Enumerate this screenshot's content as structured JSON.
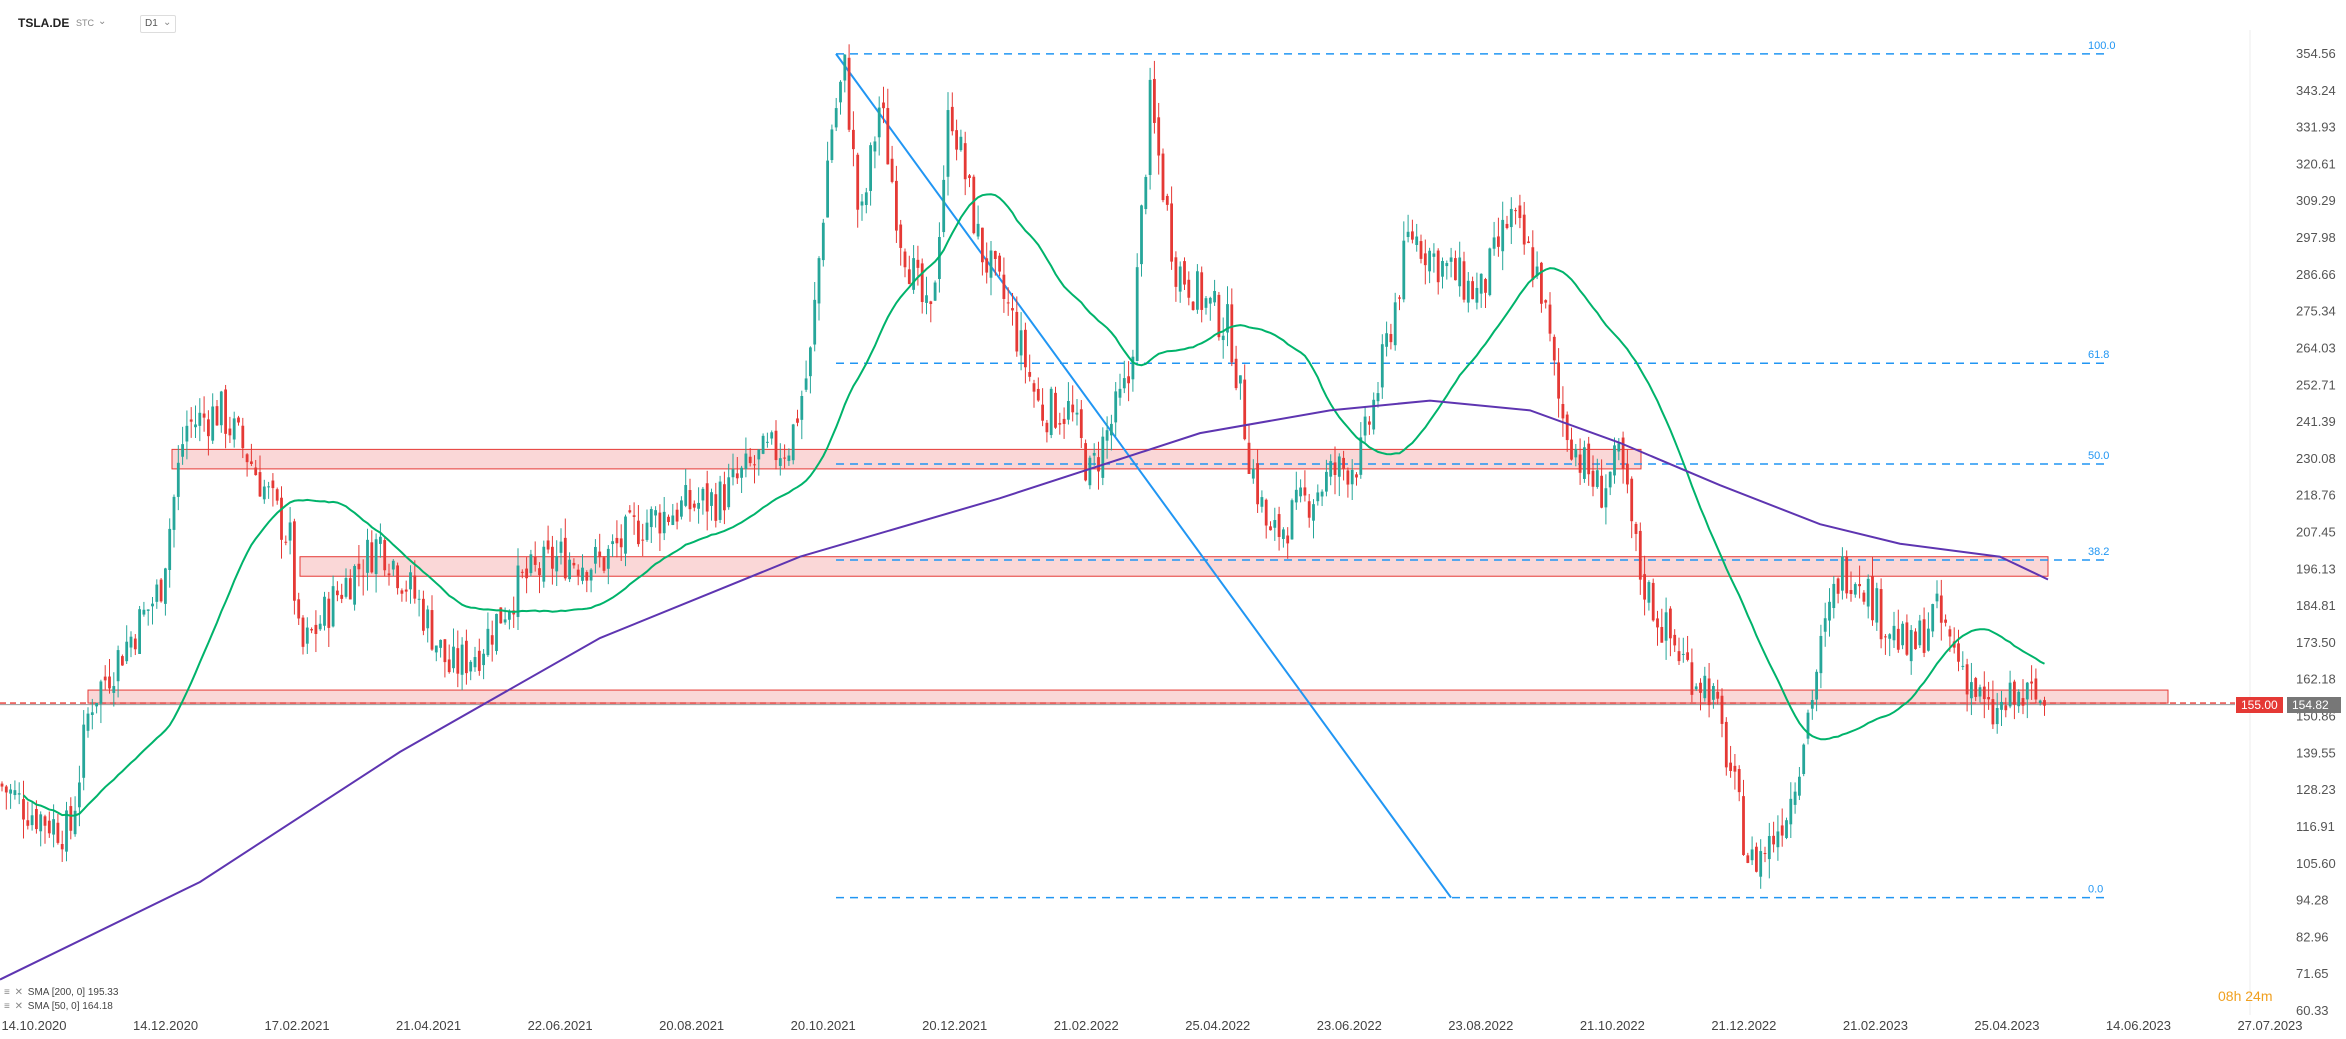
{
  "header": {
    "symbol": "TSLA.DE",
    "currency": "STC",
    "timeframe": "D1"
  },
  "price_tags": {
    "level": "155.00",
    "last": "154.82"
  },
  "indicators": [
    {
      "label": "SMA [200, 0]",
      "value": "195.33",
      "color": "#5e35b1"
    },
    {
      "label": "SMA [50, 0]",
      "value": "164.18",
      "color": "#00b36b"
    }
  ],
  "timer": "08h 24m",
  "chart_data": {
    "type": "candlestick",
    "y_ticks": [
      "354.56",
      "343.24",
      "331.93",
      "320.61",
      "309.29",
      "297.98",
      "286.66",
      "275.34",
      "264.03",
      "252.71",
      "241.39",
      "230.08",
      "218.76",
      "207.45",
      "196.13",
      "184.81",
      "173.50",
      "162.18",
      "150.86",
      "139.55",
      "128.23",
      "116.91",
      "105.60",
      "94.28",
      "82.96",
      "71.65",
      "60.33"
    ],
    "x_ticks": [
      "14.10.2020",
      "14.12.2020",
      "17.02.2021",
      "21.04.2021",
      "22.06.2021",
      "20.08.2021",
      "20.10.2021",
      "20.12.2021",
      "21.02.2022",
      "25.04.2022",
      "23.06.2022",
      "23.08.2022",
      "21.10.2022",
      "21.12.2022",
      "21.02.2023",
      "25.04.2023",
      "14.06.2023",
      "27.07.2023"
    ],
    "ylim": [
      60.33,
      354.56
    ],
    "fibonacci": [
      {
        "label": "100.0",
        "price": 354.6
      },
      {
        "label": "61.8",
        "price": 259.5
      },
      {
        "label": "50.0",
        "price": 228.5
      },
      {
        "label": "38.2",
        "price": 199.0
      },
      {
        "label": "0.0",
        "price": 95.2
      }
    ],
    "support_zones": [
      {
        "from": 227,
        "to": 233
      },
      {
        "from": 194,
        "to": 200
      },
      {
        "from": 155,
        "to": 159
      }
    ],
    "horizontal_level": 155.0,
    "last_price": 154.82,
    "colors": {
      "up": "#26a69a",
      "down": "#e53935",
      "sma200": "#5e35b1",
      "sma50": "#00b36b",
      "fib": "#2196f3",
      "zone_fill": "#f8c9c9",
      "zone_border": "#e53935"
    }
  }
}
